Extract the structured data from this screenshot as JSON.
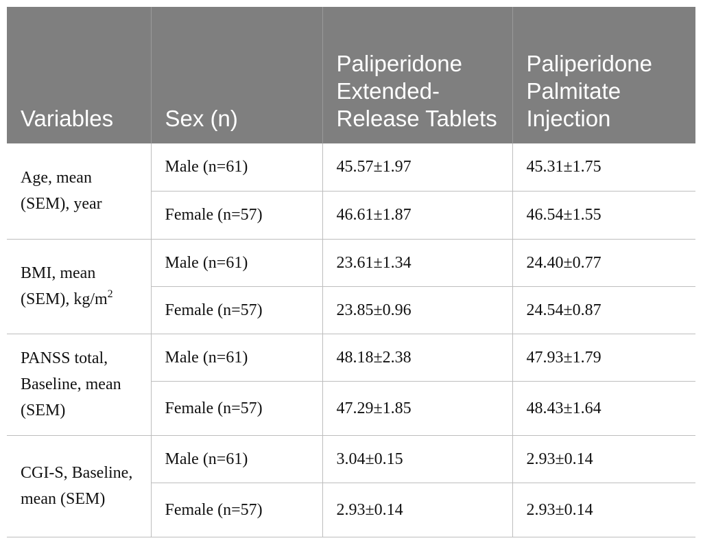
{
  "header": {
    "col1": "Variables",
    "col2": "Sex (n)",
    "col3": "Paliperidone Extended-Release Tablets",
    "col4": "Paliperidone Palmitate Injection"
  },
  "groups": [
    {
      "variable": "Age, mean (SEM), year",
      "rows": [
        {
          "sex": "Male (n=61)",
          "er": "45.57±1.97",
          "pp": "45.31±1.75"
        },
        {
          "sex": "Female (n=57)",
          "er": "46.61±1.87",
          "pp": "46.54±1.55"
        }
      ]
    },
    {
      "variable": "BMI, mean (SEM), kg/m",
      "variable_sup": "2",
      "rows": [
        {
          "sex": "Male (n=61)",
          "er": "23.61±1.34",
          "pp": "24.40±0.77"
        },
        {
          "sex": "Female (n=57)",
          "er": "23.85±0.96",
          "pp": "24.54±0.87"
        }
      ]
    },
    {
      "variable": "PANSS total, Baseline, mean (SEM)",
      "rows": [
        {
          "sex": "Male (n=61)",
          "er": "48.18±2.38",
          "pp": "47.93±1.79"
        },
        {
          "sex": "Female (n=57)",
          "er": "47.29±1.85",
          "pp": "48.43±1.64"
        }
      ]
    },
    {
      "variable": "CGI-S, Baseline, mean (SEM)",
      "rows": [
        {
          "sex": "Male (n=61)",
          "er": "3.04±0.15",
          "pp": "2.93±0.14"
        },
        {
          "sex": "Female (n=57)",
          "er": "2.93±0.14",
          "pp": "2.93±0.14"
        }
      ]
    }
  ]
}
